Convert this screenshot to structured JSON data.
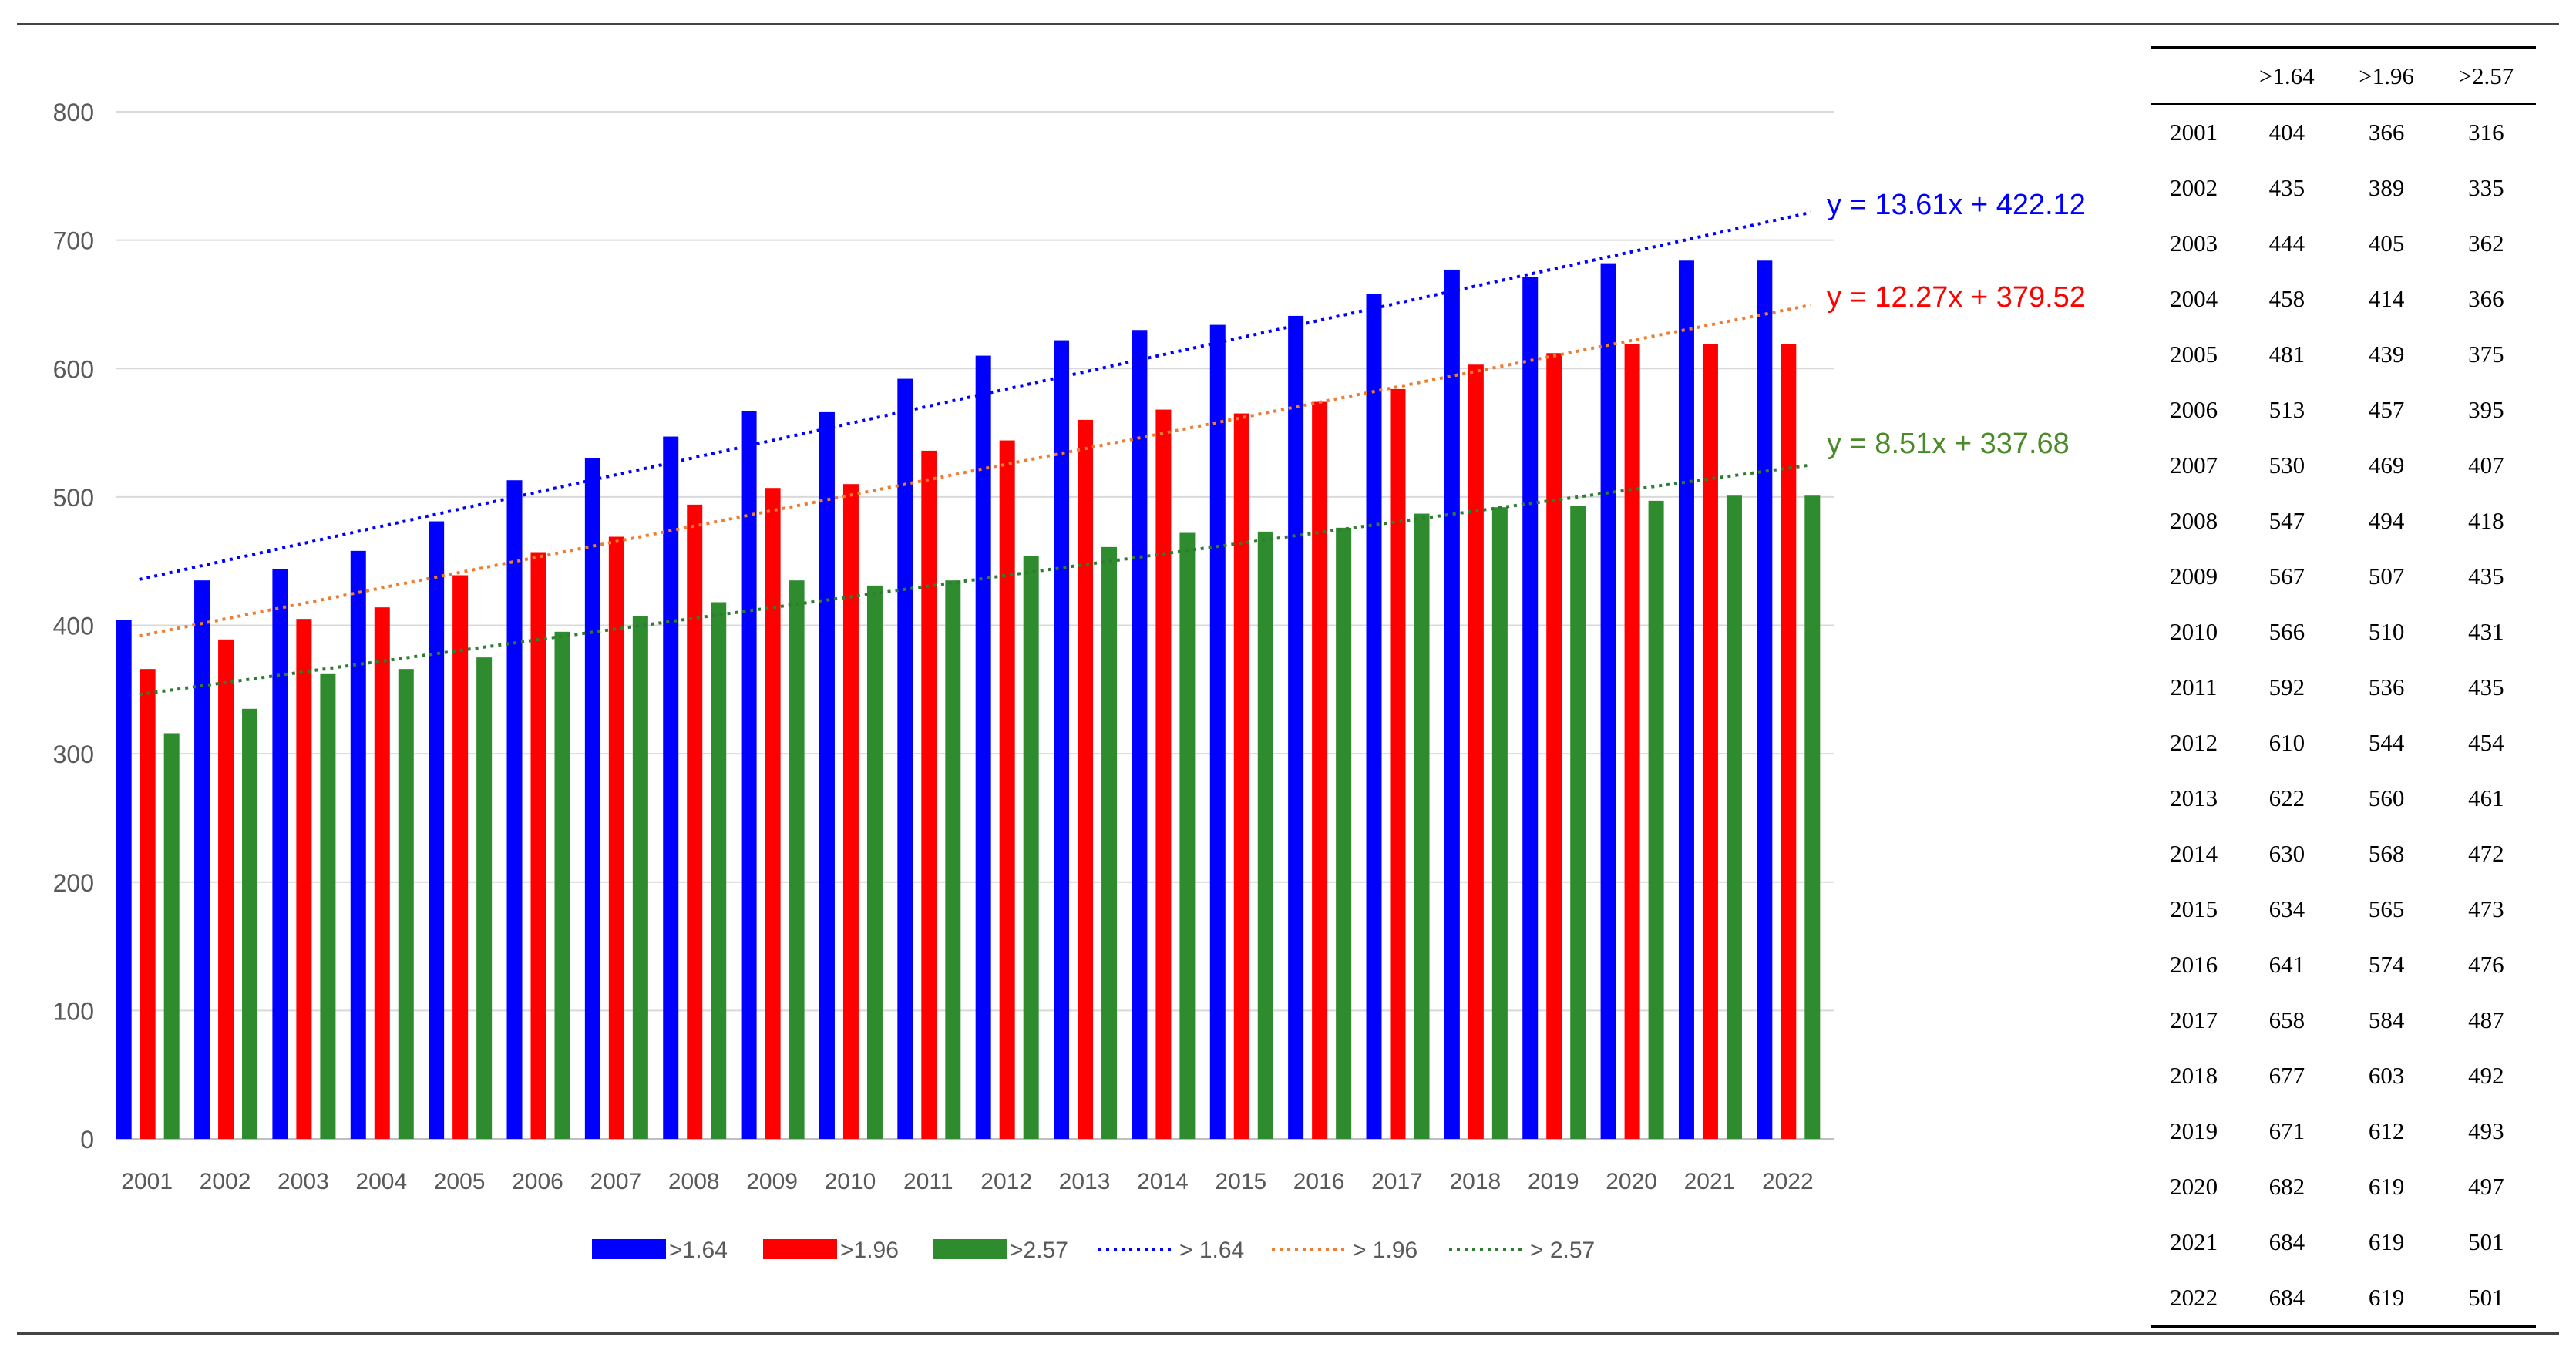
{
  "chart_data": {
    "type": "bar",
    "categories": [
      "2001",
      "2002",
      "2003",
      "2004",
      "2005",
      "2006",
      "2007",
      "2008",
      "2009",
      "2010",
      "2011",
      "2012",
      "2013",
      "2014",
      "2015",
      "2016",
      "2017",
      "2018",
      "2019",
      "2020",
      "2021",
      "2022"
    ],
    "series": [
      {
        "name": ">1.64",
        "color": "#0000ff",
        "values": [
          404,
          435,
          444,
          458,
          481,
          513,
          530,
          547,
          567,
          566,
          592,
          610,
          622,
          630,
          634,
          641,
          658,
          677,
          671,
          682,
          684,
          684
        ]
      },
      {
        "name": ">1.96",
        "color": "#ff0000",
        "values": [
          366,
          389,
          405,
          414,
          439,
          457,
          469,
          494,
          507,
          510,
          536,
          544,
          560,
          568,
          565,
          574,
          584,
          603,
          612,
          619,
          619,
          619
        ]
      },
      {
        "name": ">2.57",
        "color": "#2e8b2e",
        "values": [
          316,
          335,
          362,
          366,
          375,
          395,
          407,
          418,
          435,
          431,
          435,
          454,
          461,
          472,
          473,
          476,
          487,
          492,
          493,
          497,
          501,
          501
        ]
      }
    ],
    "trendlines": [
      {
        "name": "> 1.64",
        "color": "#0000ff",
        "slope": 13.61,
        "intercept": 422.12,
        "equation": "y = 13.61x + 422.12"
      },
      {
        "name": "> 1.96",
        "color": "#ed7d31",
        "label_color": "#ff0000",
        "slope": 12.27,
        "intercept": 379.52,
        "equation": "y = 12.27x + 379.52"
      },
      {
        "name": "> 2.57",
        "color": "#2e7d32",
        "label_color": "#4a8a2a",
        "slope": 8.51,
        "intercept": 337.68,
        "equation": "y = 8.51x + 337.68"
      }
    ],
    "yticks": [
      "0",
      "100",
      "200",
      "300",
      "400",
      "500",
      "600",
      "700",
      "800"
    ],
    "ylim": [
      0,
      800
    ],
    "grid": true,
    "legend_position": "bottom",
    "title": "",
    "xlabel": "",
    "ylabel": ""
  },
  "table": {
    "headers": [
      "",
      ">1.64",
      ">1.96",
      ">2.57"
    ],
    "rows": [
      [
        "2001",
        "404",
        "366",
        "316"
      ],
      [
        "2002",
        "435",
        "389",
        "335"
      ],
      [
        "2003",
        "444",
        "405",
        "362"
      ],
      [
        "2004",
        "458",
        "414",
        "366"
      ],
      [
        "2005",
        "481",
        "439",
        "375"
      ],
      [
        "2006",
        "513",
        "457",
        "395"
      ],
      [
        "2007",
        "530",
        "469",
        "407"
      ],
      [
        "2008",
        "547",
        "494",
        "418"
      ],
      [
        "2009",
        "567",
        "507",
        "435"
      ],
      [
        "2010",
        "566",
        "510",
        "431"
      ],
      [
        "2011",
        "592",
        "536",
        "435"
      ],
      [
        "2012",
        "610",
        "544",
        "454"
      ],
      [
        "2013",
        "622",
        "560",
        "461"
      ],
      [
        "2014",
        "630",
        "568",
        "472"
      ],
      [
        "2015",
        "634",
        "565",
        "473"
      ],
      [
        "2016",
        "641",
        "574",
        "476"
      ],
      [
        "2017",
        "658",
        "584",
        "487"
      ],
      [
        "2018",
        "677",
        "603",
        "492"
      ],
      [
        "2019",
        "671",
        "612",
        "493"
      ],
      [
        "2020",
        "682",
        "619",
        "497"
      ],
      [
        "2021",
        "684",
        "619",
        "501"
      ],
      [
        "2022",
        "684",
        "619",
        "501"
      ]
    ]
  }
}
